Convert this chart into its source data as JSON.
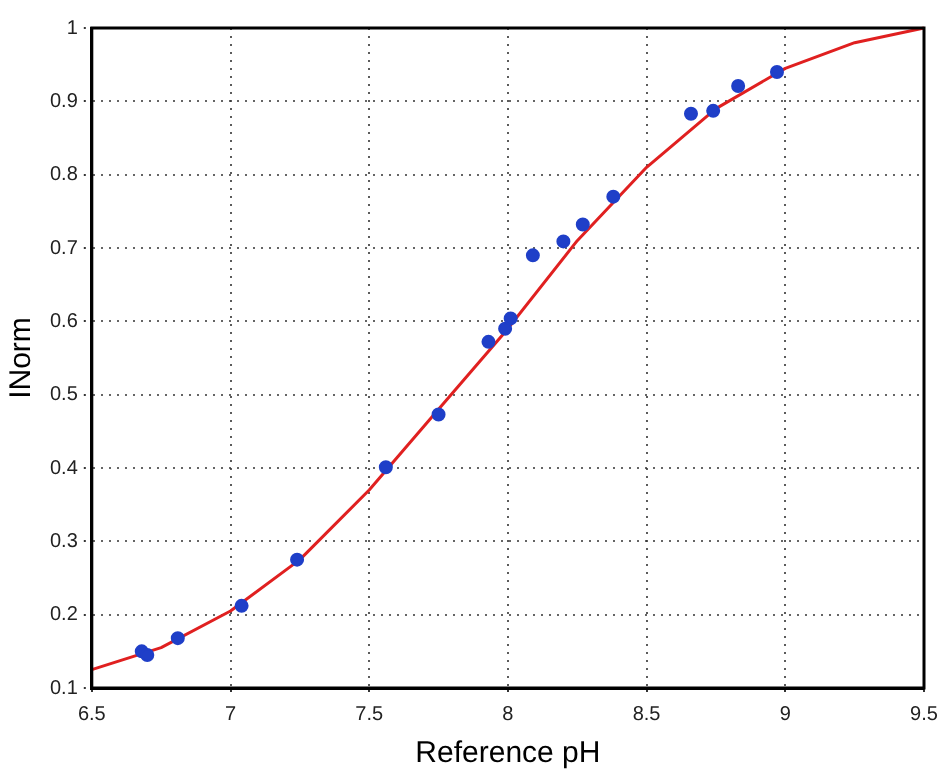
{
  "chart_data": {
    "type": "scatter",
    "xlabel": "Reference pH",
    "ylabel": "INorm",
    "xlim": [
      6.5,
      9.5
    ],
    "ylim": [
      0.1,
      1
    ],
    "xticks": [
      6.5,
      7,
      7.5,
      8,
      8.5,
      9,
      9.5
    ],
    "yticks": [
      0.1,
      0.2,
      0.3,
      0.4,
      0.5,
      0.6,
      0.7,
      0.8,
      0.9,
      1
    ],
    "grid": true,
    "legend": false,
    "series": [
      {
        "color": "#1f3fc8",
        "marker": "circle",
        "x": [
          6.68,
          6.7,
          6.81,
          7.04,
          7.24,
          7.56,
          7.75,
          7.93,
          7.99,
          8.01,
          8.09,
          8.2,
          8.27,
          8.38,
          8.66,
          8.74,
          8.83,
          8.97
        ],
        "values": [
          0.15,
          0.145,
          0.168,
          0.212,
          0.275,
          0.401,
          0.473,
          0.572,
          0.59,
          0.604,
          0.69,
          0.709,
          0.732,
          0.77,
          0.883,
          0.887,
          0.921,
          0.94
        ]
      },
      {
        "type": "line",
        "color": "#e02020",
        "marker": "none",
        "line_style": "solid",
        "x": [
          6.5,
          6.75,
          7,
          7.25,
          7.5,
          7.75,
          8,
          8.25,
          8.5,
          8.75,
          9,
          9.25,
          9.5
        ],
        "values": [
          0.125,
          0.155,
          0.205,
          0.275,
          0.37,
          0.48,
          0.59,
          0.71,
          0.81,
          0.89,
          0.945,
          0.98,
          1.0
        ]
      }
    ]
  }
}
